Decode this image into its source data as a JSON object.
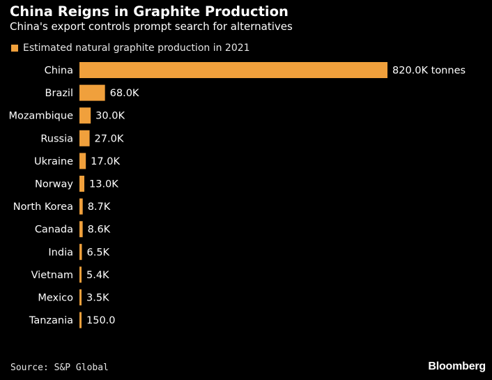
{
  "chart_data": {
    "type": "bar",
    "orientation": "horizontal",
    "title": "China Reigns in Graphite Production",
    "subtitle": "China's export controls prompt search for alternatives",
    "legend": [
      "Estimated natural graphite production in 2021"
    ],
    "legend_position": "top-left",
    "categories": [
      "China",
      "Brazil",
      "Mozambique",
      "Russia",
      "Ukraine",
      "Norway",
      "North Korea",
      "Canada",
      "India",
      "Vietnam",
      "Mexico",
      "Tanzania"
    ],
    "values": [
      820000,
      68000,
      30000,
      27000,
      17000,
      13000,
      8700,
      8600,
      6500,
      5400,
      3500,
      150
    ],
    "data_labels": [
      "820.0K tonnes",
      "68.0K",
      "30.0K",
      "27.0K",
      "17.0K",
      "13.0K",
      "8.7K",
      "8.6K",
      "6.5K",
      "5.4K",
      "3.5K",
      "150.0"
    ],
    "series": [
      {
        "name": "Estimated natural graphite production in 2021",
        "color": "#f0a03c"
      }
    ],
    "grid": false
  },
  "footer": {
    "source": "Source: S&P Global",
    "brand": "Bloomberg"
  },
  "colors": {
    "background": "#000000",
    "bar": "#f0a03c",
    "text": "#ffffff"
  }
}
